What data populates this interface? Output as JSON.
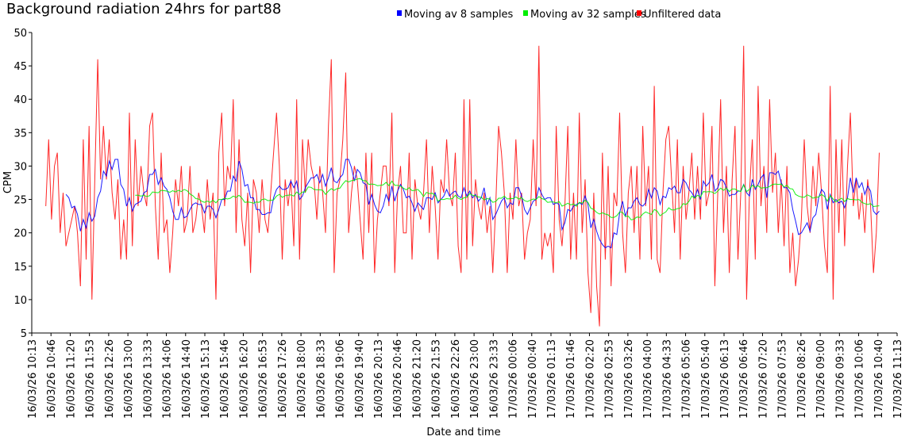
{
  "chart_data": {
    "type": "line",
    "title": "Background radiation 24hrs for part88",
    "xlabel": "Date and time",
    "ylabel": "CPM",
    "ylim": [
      5,
      50
    ],
    "yticks": [
      5,
      10,
      15,
      20,
      25,
      30,
      35,
      40,
      45,
      50
    ],
    "grid": false,
    "legend_placement": "top",
    "xticks": [
      "16/03/26 10:13",
      "16/03/26 10:46",
      "16/03/26 11:20",
      "16/03/26 11:53",
      "16/03/26 12:26",
      "16/03/26 13:00",
      "16/03/26 13:33",
      "16/03/26 14:06",
      "16/03/26 14:40",
      "16/03/26 15:13",
      "16/03/26 15:46",
      "16/03/26 16:20",
      "16/03/26 16:53",
      "16/03/26 17:26",
      "16/03/26 18:00",
      "16/03/26 18:33",
      "16/03/26 19:06",
      "16/03/26 19:40",
      "16/03/26 20:13",
      "16/03/26 20:46",
      "16/03/26 21:20",
      "16/03/26 21:53",
      "16/03/26 22:26",
      "16/03/26 23:00",
      "16/03/26 23:33",
      "17/03/26 00:06",
      "17/03/26 00:40",
      "17/03/26 01:13",
      "17/03/26 01:46",
      "17/03/26 02:20",
      "17/03/26 02:53",
      "17/03/26 03:26",
      "17/03/26 04:00",
      "17/03/26 04:33",
      "17/03/26 05:06",
      "17/03/26 05:40",
      "17/03/26 06:13",
      "17/03/26 06:46",
      "17/03/26 07:20",
      "17/03/26 07:53",
      "17/03/26 08:26",
      "17/03/26 09:00",
      "17/03/26 09:33",
      "17/03/26 10:06",
      "17/03/26 10:40",
      "17/03/26 11:13"
    ],
    "x_range_ticks": [
      0.73,
      44.07
    ],
    "series": [
      {
        "name": "Moving av 8 samples",
        "color": "#0000ff",
        "window": 8
      },
      {
        "name": "Moving av 32 samples",
        "color": "#00ee00",
        "window": 32
      },
      {
        "name": "Unfiltered data",
        "color": "#ff0000",
        "values": [
          24,
          34,
          22,
          30,
          32,
          20,
          26,
          18,
          20,
          22,
          24,
          20,
          12,
          34,
          16,
          36,
          10,
          28,
          46,
          28,
          36,
          28,
          34,
          26,
          22,
          28,
          16,
          22,
          16,
          38,
          18,
          34,
          24,
          30,
          26,
          24,
          36,
          38,
          24,
          16,
          32,
          20,
          22,
          14,
          20,
          28,
          24,
          30,
          20,
          22,
          30,
          20,
          22,
          26,
          24,
          20,
          28,
          22,
          26,
          10,
          32,
          38,
          24,
          30,
          28,
          40,
          20,
          34,
          22,
          18,
          26,
          14,
          28,
          26,
          20,
          28,
          22,
          20,
          26,
          32,
          38,
          30,
          16,
          28,
          24,
          28,
          18,
          40,
          16,
          34,
          26,
          34,
          30,
          28,
          22,
          30,
          26,
          20,
          36,
          46,
          14,
          26,
          28,
          34,
          44,
          20,
          26,
          30,
          28,
          22,
          16,
          32,
          20,
          32,
          14,
          22,
          26,
          30,
          30,
          24,
          38,
          14,
          26,
          30,
          20,
          20,
          32,
          16,
          28,
          24,
          22,
          26,
          34,
          20,
          30,
          24,
          16,
          28,
          26,
          34,
          26,
          24,
          32,
          18,
          14,
          40,
          16,
          40,
          18,
          28,
          24,
          22,
          26,
          20,
          24,
          14,
          24,
          36,
          32,
          26,
          14,
          26,
          22,
          34,
          24,
          26,
          16,
          20,
          22,
          34,
          24,
          48,
          16,
          20,
          18,
          20,
          14,
          36,
          22,
          18,
          24,
          36,
          16,
          26,
          16,
          38,
          20,
          28,
          14,
          8,
          26,
          12,
          6,
          32,
          16,
          30,
          12,
          26,
          24,
          38,
          20,
          14,
          26,
          30,
          20,
          30,
          16,
          36,
          24,
          30,
          16,
          42,
          16,
          14,
          26,
          34,
          36,
          28,
          20,
          34,
          16,
          30,
          22,
          26,
          32,
          22,
          30,
          22,
          38,
          24,
          26,
          36,
          12,
          26,
          40,
          20,
          30,
          14,
          28,
          36,
          16,
          26,
          48,
          10,
          26,
          34,
          16,
          42,
          24,
          30,
          20,
          40,
          26,
          32,
          20,
          28,
          18,
          30,
          14,
          20,
          12,
          16,
          22,
          34,
          24,
          20,
          30,
          24,
          32,
          26,
          18,
          14,
          42,
          10,
          34,
          20,
          34,
          18,
          30,
          38,
          24,
          28,
          22,
          26,
          20,
          28,
          24,
          14,
          20,
          32
        ]
      }
    ]
  }
}
